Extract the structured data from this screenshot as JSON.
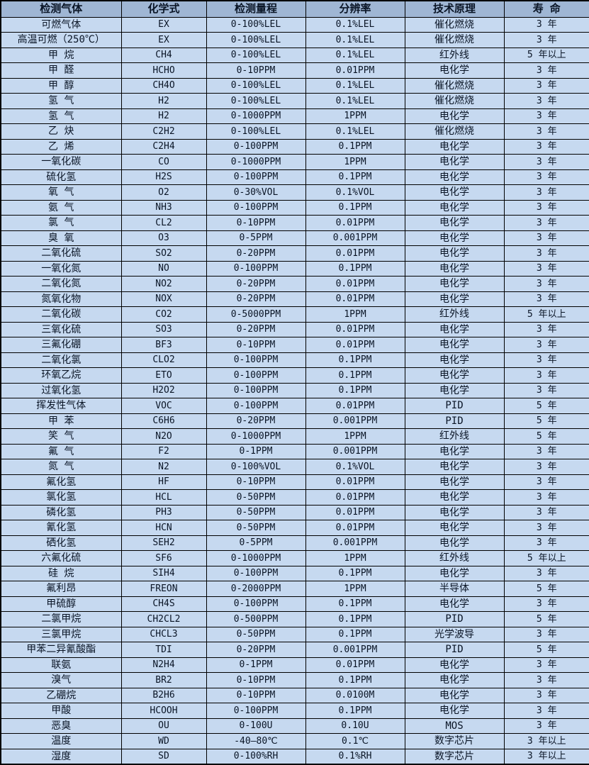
{
  "colors": {
    "header_bg": "#9fb6d4",
    "row_bg": "#c6d9f0",
    "border": "#000000",
    "text": "#0a1526"
  },
  "table": {
    "headers": [
      "检测气体",
      "化学式",
      "检测量程",
      "分辨率",
      "技术原理",
      "寿 命"
    ],
    "rows": [
      {
        "gas": "可燃气体",
        "formula": "EX",
        "range": "0-100%LEL",
        "resolution": "0.1%LEL",
        "principle": "催化燃烧",
        "life": "3 年"
      },
      {
        "gas": "高温可燃（250℃）",
        "formula": "EX",
        "range": "0-100%LEL",
        "resolution": "0.1%LEL",
        "principle": "催化燃烧",
        "life": "3 年"
      },
      {
        "gas": "甲 烷",
        "formula": "CH4",
        "range": "0-100%LEL",
        "resolution": "0.1%LEL",
        "principle": "红外线",
        "life": "5 年以上"
      },
      {
        "gas": "甲 醛",
        "formula": "HCHO",
        "range": "0-10PPM",
        "resolution": "0.01PPM",
        "principle": "电化学",
        "life": "3 年"
      },
      {
        "gas": "甲 醇",
        "formula": "CH4O",
        "range": "0-100%LEL",
        "resolution": "0.1%LEL",
        "principle": "催化燃烧",
        "life": "3 年"
      },
      {
        "gas": "氢 气",
        "formula": "H2",
        "range": "0-100%LEL",
        "resolution": "0.1%LEL",
        "principle": "催化燃烧",
        "life": "3 年"
      },
      {
        "gas": "氢 气",
        "formula": "H2",
        "range": "0-1000PPM",
        "resolution": "1PPM",
        "principle": "电化学",
        "life": "3 年"
      },
      {
        "gas": "乙 炔",
        "formula": "C2H2",
        "range": "0-100%LEL",
        "resolution": "0.1%LEL",
        "principle": "催化燃烧",
        "life": "3 年"
      },
      {
        "gas": "乙 烯",
        "formula": "C2H4",
        "range": "0-100PPM",
        "resolution": "0.1PPM",
        "principle": "电化学",
        "life": "3 年"
      },
      {
        "gas": "一氧化碳",
        "formula": "CO",
        "range": "0-1000PPM",
        "resolution": "1PPM",
        "principle": "电化学",
        "life": "3 年"
      },
      {
        "gas": "硫化氢",
        "formula": "H2S",
        "range": "0-100PPM",
        "resolution": "0.1PPM",
        "principle": "电化学",
        "life": "3 年"
      },
      {
        "gas": "氧 气",
        "formula": "O2",
        "range": "0-30%VOL",
        "resolution": "0.1%VOL",
        "principle": "电化学",
        "life": "3 年"
      },
      {
        "gas": "氨 气",
        "formula": "NH3",
        "range": "0-100PPM",
        "resolution": "0.1PPM",
        "principle": "电化学",
        "life": "3 年"
      },
      {
        "gas": "氯 气",
        "formula": "CL2",
        "range": "0-10PPM",
        "resolution": "0.01PPM",
        "principle": "电化学",
        "life": "3 年"
      },
      {
        "gas": "臭 氧",
        "formula": "O3",
        "range": "0-5PPM",
        "resolution": "0.001PPM",
        "principle": "电化学",
        "life": "3 年"
      },
      {
        "gas": "二氧化硫",
        "formula": "SO2",
        "range": "0-20PPM",
        "resolution": "0.01PPM",
        "principle": "电化学",
        "life": "3 年"
      },
      {
        "gas": "一氧化氮",
        "formula": "NO",
        "range": "0-100PPM",
        "resolution": "0.1PPM",
        "principle": "电化学",
        "life": "3 年"
      },
      {
        "gas": "二氧化氮",
        "formula": "NO2",
        "range": "0-20PPM",
        "resolution": "0.01PPM",
        "principle": "电化学",
        "life": "3 年"
      },
      {
        "gas": "氮氧化物",
        "formula": "NOX",
        "range": "0-20PPM",
        "resolution": "0.01PPM",
        "principle": "电化学",
        "life": "3 年"
      },
      {
        "gas": "二氧化碳",
        "formula": "CO2",
        "range": "0-5000PPM",
        "resolution": "1PPM",
        "principle": "红外线",
        "life": "5 年以上"
      },
      {
        "gas": "三氧化硫",
        "formula": "SO3",
        "range": "0-20PPM",
        "resolution": "0.01PPM",
        "principle": "电化学",
        "life": "3 年"
      },
      {
        "gas": "三氟化硼",
        "formula": "BF3",
        "range": "0-10PPM",
        "resolution": "0.01PPM",
        "principle": "电化学",
        "life": "3 年"
      },
      {
        "gas": "二氧化氯",
        "formula": "CLO2",
        "range": "0-100PPM",
        "resolution": "0.1PPM",
        "principle": "电化学",
        "life": "3 年"
      },
      {
        "gas": "环氧乙烷",
        "formula": "ETO",
        "range": "0-100PPM",
        "resolution": "0.1PPM",
        "principle": "电化学",
        "life": "3 年"
      },
      {
        "gas": "过氧化氢",
        "formula": "H2O2",
        "range": "0-100PPM",
        "resolution": "0.1PPM",
        "principle": "电化学",
        "life": "3 年"
      },
      {
        "gas": "挥发性气体",
        "formula": "VOC",
        "range": "0-100PPM",
        "resolution": "0.01PPM",
        "principle": "PID",
        "life": "5 年"
      },
      {
        "gas": "甲 苯",
        "formula": "C6H6",
        "range": "0-20PPM",
        "resolution": "0.001PPM",
        "principle": "PID",
        "life": "5 年"
      },
      {
        "gas": "笑 气",
        "formula": "N2O",
        "range": "0-1000PPM",
        "resolution": "1PPM",
        "principle": "红外线",
        "life": "5 年"
      },
      {
        "gas": "氟 气",
        "formula": "F2",
        "range": "0-1PPM",
        "resolution": "0.001PPM",
        "principle": "电化学",
        "life": "3 年"
      },
      {
        "gas": "氮 气",
        "formula": "N2",
        "range": "0-100%VOL",
        "resolution": "0.1%VOL",
        "principle": "电化学",
        "life": "3 年"
      },
      {
        "gas": "氟化氢",
        "formula": "HF",
        "range": "0-10PPM",
        "resolution": "0.01PPM",
        "principle": "电化学",
        "life": "3 年"
      },
      {
        "gas": "氯化氢",
        "formula": "HCL",
        "range": "0-50PPM",
        "resolution": "0.01PPM",
        "principle": "电化学",
        "life": "3 年"
      },
      {
        "gas": "磷化氢",
        "formula": "PH3",
        "range": "0-50PPM",
        "resolution": "0.01PPM",
        "principle": "电化学",
        "life": "3 年"
      },
      {
        "gas": "氰化氢",
        "formula": "HCN",
        "range": "0-50PPM",
        "resolution": "0.01PPM",
        "principle": "电化学",
        "life": "3 年"
      },
      {
        "gas": "硒化氢",
        "formula": "SEH2",
        "range": "0-5PPM",
        "resolution": "0.001PPM",
        "principle": "电化学",
        "life": "3 年"
      },
      {
        "gas": "六氟化硫",
        "formula": "SF6",
        "range": "0-1000PPM",
        "resolution": "1PPM",
        "principle": "红外线",
        "life": "5 年以上"
      },
      {
        "gas": "硅 烷",
        "formula": "SIH4",
        "range": "0-100PPM",
        "resolution": "0.1PPM",
        "principle": "电化学",
        "life": "3 年"
      },
      {
        "gas": "氟利昂",
        "formula": "FREON",
        "range": "0-2000PPM",
        "resolution": "1PPM",
        "principle": "半导体",
        "life": "5 年"
      },
      {
        "gas": "甲硫醇",
        "formula": "CH4S",
        "range": "0-100PPM",
        "resolution": "0.1PPM",
        "principle": "电化学",
        "life": "3 年"
      },
      {
        "gas": "二氯甲烷",
        "formula": "CH2CL2",
        "range": "0-500PPM",
        "resolution": "0.1PPM",
        "principle": "PID",
        "life": "5 年"
      },
      {
        "gas": "三氯甲烷",
        "formula": "CHCL3",
        "range": "0-50PPM",
        "resolution": "0.1PPM",
        "principle": "光学波导",
        "life": "3 年"
      },
      {
        "gas": "甲苯二异氰酸酯",
        "formula": "TDI",
        "range": "0-20PPM",
        "resolution": "0.001PPM",
        "principle": "PID",
        "life": "5 年"
      },
      {
        "gas": "联氨",
        "formula": "N2H4",
        "range": "0-1PPM",
        "resolution": "0.01PPM",
        "principle": "电化学",
        "life": "3 年"
      },
      {
        "gas": "溴气",
        "formula": "BR2",
        "range": "0-10PPM",
        "resolution": "0.1PPM",
        "principle": "电化学",
        "life": "3 年"
      },
      {
        "gas": "乙硼烷",
        "formula": "B2H6",
        "range": "0-10PPM",
        "resolution": "0.0100M",
        "principle": "电化学",
        "life": "3 年"
      },
      {
        "gas": "甲酸",
        "formula": "HCOOH",
        "range": "0-100PPM",
        "resolution": "0.1PPM",
        "principle": "电化学",
        "life": "3 年"
      },
      {
        "gas": "恶臭",
        "formula": "OU",
        "range": "0-100U",
        "resolution": "0.10U",
        "principle": "MOS",
        "life": "3 年"
      },
      {
        "gas": "温度",
        "formula": "WD",
        "range": "-40—80℃",
        "resolution": "0.1℃",
        "principle": "数字芯片",
        "life": "3 年以上"
      },
      {
        "gas": "湿度",
        "formula": "SD",
        "range": "0-100%RH",
        "resolution": "0.1%RH",
        "principle": "数字芯片",
        "life": "3 年以上"
      }
    ]
  }
}
